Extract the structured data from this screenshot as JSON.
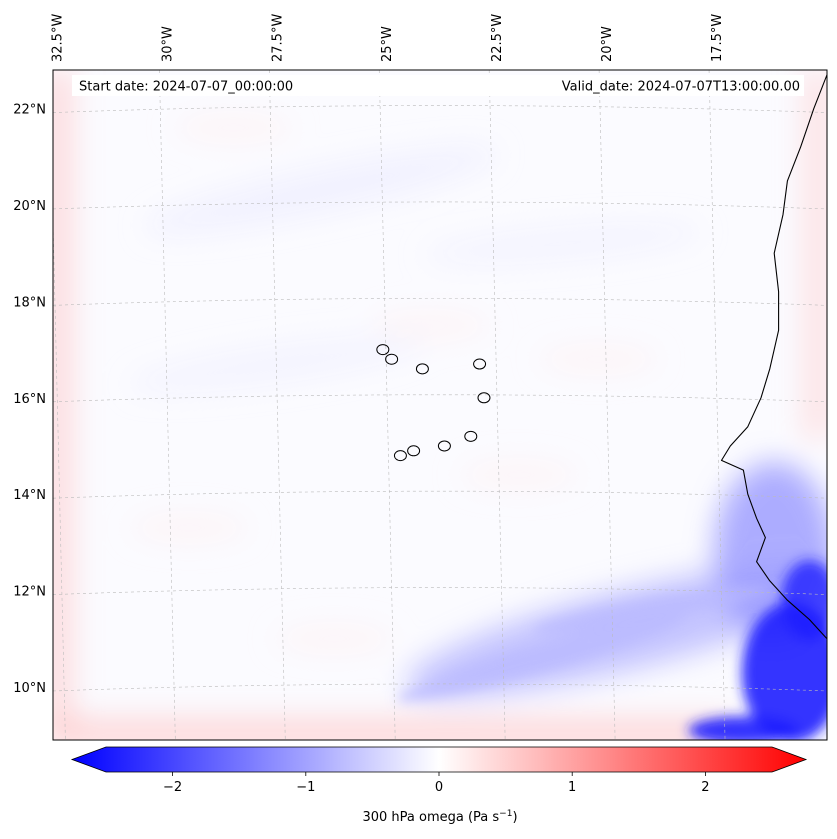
{
  "chart_data": {
    "type": "heatmap",
    "title": "",
    "start_date_text": "Start date: 2024-07-07_00:00:00",
    "valid_date_text": "Valid_date: 2024-07-07T13:00:00.00",
    "lon_ticks": [
      -32.5,
      -30,
      -27.5,
      -25,
      -22.5,
      -20,
      -17.5
    ],
    "lon_tick_labels": [
      "32.5°W",
      "30°W",
      "27.5°W",
      "25°W",
      "22.5°W",
      "20°W",
      "17.5°W"
    ],
    "lat_ticks": [
      10,
      12,
      14,
      16,
      18,
      20,
      22
    ],
    "lat_tick_labels": [
      "10°N",
      "12°N",
      "14°N",
      "16°N",
      "18°N",
      "20°N",
      "22°N"
    ],
    "extent": {
      "lon_min": -32.6,
      "lon_max": -15.0,
      "lat_min": 8.9,
      "lat_max": 22.8
    },
    "colorbar": {
      "label_main": "300 hPa omega (Pa s",
      "label_exp": "−1",
      "label_close": ")",
      "ticks": [
        -2,
        -1,
        0,
        1,
        2
      ],
      "tick_labels": [
        "−2",
        "−1",
        "0",
        "1",
        "2"
      ],
      "vmin": -2.5,
      "vmax": 2.5,
      "levels": 51,
      "cmap": "bwr",
      "extend": "both"
    },
    "colors": {
      "negative": "#0000ff",
      "neutral": "#ffffff",
      "positive": "#ff0000",
      "coast": "#000000",
      "grid": "#bbbbbb"
    },
    "field_features": [
      {
        "name": "strong-ascent-southeast",
        "lon": -15.8,
        "lat": 10.3,
        "value": -2.2
      },
      {
        "name": "ascent-band-southeast",
        "lon": -19.5,
        "lat": 11.2,
        "value": -0.7
      },
      {
        "name": "ascent-near-senegal",
        "lon": -16.2,
        "lat": 12.8,
        "value": -1.0
      },
      {
        "name": "boundary-subsidence-west",
        "lon": -32.4,
        "lat": 14.0,
        "value": 0.6
      },
      {
        "name": "boundary-subsidence-south",
        "lon": -26.0,
        "lat": 9.0,
        "value": 0.6
      },
      {
        "name": "boundary-subsidence-east",
        "lon": -15.2,
        "lat": 17.0,
        "value": 0.5
      },
      {
        "name": "weak-ascent-north",
        "lon": -26.5,
        "lat": 20.3,
        "value": -0.2
      }
    ],
    "coastline": [
      [
        -15.0,
        22.7
      ],
      [
        -15.3,
        22.0
      ],
      [
        -15.6,
        21.2
      ],
      [
        -15.9,
        20.5
      ],
      [
        -16.0,
        19.8
      ],
      [
        -16.2,
        19.0
      ],
      [
        -16.1,
        18.2
      ],
      [
        -16.1,
        17.4
      ],
      [
        -16.3,
        16.6
      ],
      [
        -16.5,
        16.0
      ],
      [
        -16.8,
        15.4
      ],
      [
        -17.2,
        15.0
      ],
      [
        -17.4,
        14.7
      ],
      [
        -16.9,
        14.5
      ],
      [
        -16.8,
        14.0
      ],
      [
        -16.6,
        13.5
      ],
      [
        -16.4,
        13.1
      ],
      [
        -16.6,
        12.6
      ],
      [
        -16.3,
        12.2
      ],
      [
        -15.9,
        11.8
      ],
      [
        -15.4,
        11.4
      ],
      [
        -15.0,
        11.0
      ]
    ],
    "islands": [
      {
        "name": "santo-antao",
        "lon": -25.1,
        "lat": 17.0
      },
      {
        "name": "sao-vicente",
        "lon": -24.9,
        "lat": 16.8
      },
      {
        "name": "sal",
        "lon": -22.9,
        "lat": 16.7
      },
      {
        "name": "sao-nicolau",
        "lon": -24.2,
        "lat": 16.6
      },
      {
        "name": "boa-vista",
        "lon": -22.8,
        "lat": 16.0
      },
      {
        "name": "maio",
        "lon": -23.1,
        "lat": 15.2
      },
      {
        "name": "santiago",
        "lon": -23.7,
        "lat": 15.0
      },
      {
        "name": "fogo",
        "lon": -24.4,
        "lat": 14.9
      },
      {
        "name": "brava",
        "lon": -24.7,
        "lat": 14.8
      }
    ]
  }
}
